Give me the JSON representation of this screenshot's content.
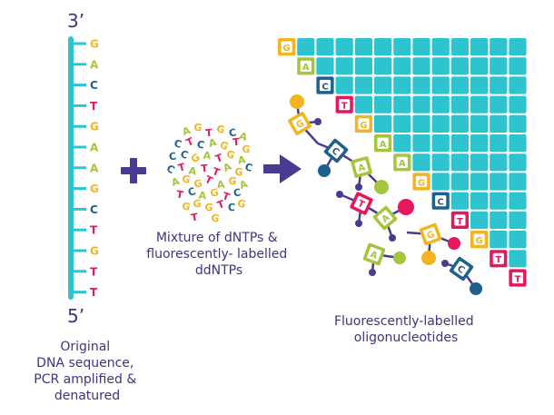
{
  "colors": {
    "G": "#f2b51f",
    "A": "#a6c53e",
    "C": "#1e5f8e",
    "T": "#e5185e",
    "teal": "#2ec4cf",
    "purple": "#4b3b90",
    "text": "#3d3580"
  },
  "strand": {
    "top_label": "3’",
    "bottom_label": "5’",
    "bases": [
      "G",
      "A",
      "C",
      "T",
      "G",
      "A",
      "A",
      "G",
      "C",
      "T",
      "G",
      "T",
      "T"
    ],
    "caption": [
      "Original",
      "DNA sequence,",
      "PCR amplified &",
      "denatured"
    ]
  },
  "plus_symbol": "+",
  "mixture": {
    "letters": [
      "A",
      "G",
      "T",
      "G",
      "C",
      "A",
      "C",
      "T",
      "C",
      "A",
      "G",
      "T",
      "G",
      "C",
      "C",
      "G",
      "A",
      "T",
      "G",
      "A",
      "C",
      "T",
      "A",
      "T",
      "T",
      "A",
      "G",
      "C",
      "A",
      "G",
      "G",
      "T",
      "A",
      "G",
      "A",
      "T",
      "C",
      "A",
      "G",
      "T",
      "C",
      "G",
      "G",
      "G",
      "T",
      "C",
      "G",
      "T",
      "G"
    ],
    "caption": [
      "Mixture of dNTPs &",
      "fluorescently- labelled",
      "ddNTPs"
    ]
  },
  "arrow_icon": "right-arrow-icon",
  "oligos": {
    "tiles": [
      "G",
      "A",
      "C",
      "T",
      "G",
      "A",
      "A",
      "G",
      "C",
      "T",
      "G",
      "T",
      "T"
    ],
    "caption": [
      "Fluorescently-labelled",
      "oligonucleotides"
    ]
  }
}
